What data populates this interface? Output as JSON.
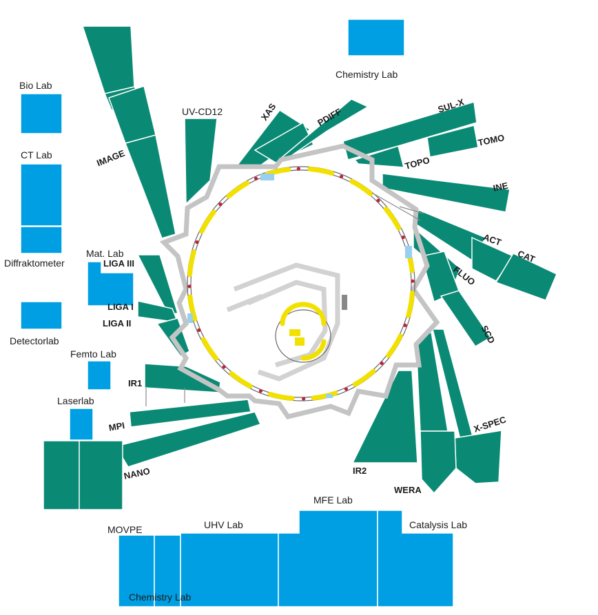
{
  "colors": {
    "lab": "#009fe3",
    "beamline": "#0a8a74",
    "shielding": "#c4c4c4",
    "magnet": "#f2e100",
    "marker": "#c0203a"
  },
  "labs": {
    "chemistry_top": "Chemistry Lab",
    "bio": "Bio Lab",
    "ct": "CT Lab",
    "diffraktometer": "Diffraktometer",
    "mat": "Mat. Lab",
    "detector": "Detectorlab",
    "femto": "Femto Lab",
    "laser": "Laserlab",
    "movpe": "MOVPE",
    "uhv": "UHV Lab",
    "mfe": "MFE Lab",
    "catalysis": "Catalysis Lab",
    "chemistry_bottom": "Chemistry Lab"
  },
  "beamlines": {
    "image": "IMAGE",
    "uv_cd12": "UV-CD12",
    "xas": "XAS",
    "pdiff": "PDIFF",
    "sul_x": "SUL-X",
    "tomo": "TOMO",
    "topo": "TOPO",
    "ine": "INE",
    "act": "ACT",
    "cat": "CAT",
    "fluo": "FLUO",
    "scd": "SCD",
    "x_spec": "X-SPEC",
    "wera": "WERA",
    "ir2": "IR2",
    "liga3": "LIGA III",
    "liga1": "LIGA I",
    "liga2": "LIGA II",
    "ir1": "IR1",
    "mpi": "MPI",
    "nano": "NANO"
  }
}
